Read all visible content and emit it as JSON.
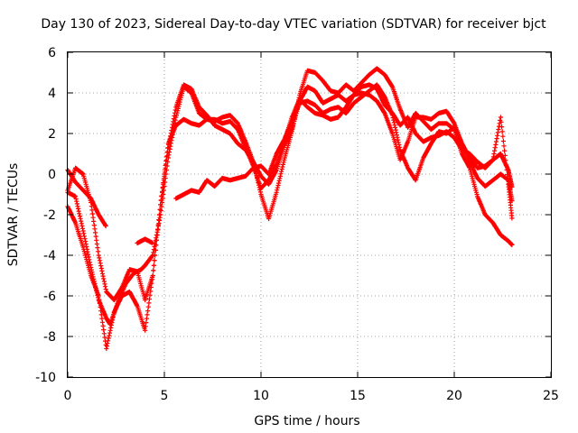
{
  "chart_data": {
    "type": "scatter",
    "title": "Day 130 of 2023, Sidereal Day-to-day VTEC variation (SDTVAR) for receiver bjct",
    "xlabel": "GPS time / hours",
    "ylabel": "SDTVAR / TECUs",
    "xlim": [
      0,
      25
    ],
    "ylim": [
      -10,
      6
    ],
    "xticks": [
      0,
      5,
      10,
      15,
      20,
      25
    ],
    "yticks": [
      -10,
      -8,
      -6,
      -4,
      -2,
      0,
      2,
      4,
      6
    ],
    "grid": true,
    "marker": "plus",
    "color": "#ff0000",
    "series": [
      {
        "x": [
          0,
          0.4,
          0.8,
          1.2,
          1.6,
          2.0,
          2.2,
          2.6,
          3.0,
          3.4,
          3.8,
          4.0,
          4.4,
          4.8,
          5.2,
          5.6,
          6.0,
          6.4,
          6.8,
          7.2,
          7.6,
          8.0,
          8.4,
          8.8,
          9.2,
          9.6,
          10.0,
          10.4,
          10.8,
          11.2,
          11.6,
          12.0,
          12.4,
          12.8,
          13.2,
          13.6,
          14.0,
          14.4,
          14.8,
          15.2,
          15.6,
          16.0,
          16.4,
          16.8,
          17.2,
          17.6,
          18.0,
          18.4,
          18.8,
          19.2,
          19.6,
          20.0,
          20.4,
          20.8,
          21.2,
          21.6,
          22.0,
          22.4,
          22.8,
          23.0
        ],
        "y": [
          -0.9,
          -1.1,
          -2.8,
          -4.6,
          -6.2,
          -7.1,
          -7.4,
          -6.3,
          -5.4,
          -4.9,
          -4.7,
          -4.5,
          -4.0,
          -2.0,
          0.8,
          2.8,
          4.3,
          4.0,
          3.0,
          2.7,
          2.6,
          2.8,
          2.9,
          2.5,
          1.6,
          0.6,
          -0.1,
          -0.5,
          0.2,
          1.4,
          2.2,
          3.6,
          4.3,
          4.1,
          3.5,
          3.7,
          3.9,
          3.6,
          3.9,
          4.3,
          4.4,
          4.2,
          3.4,
          3.0,
          2.4,
          2.8,
          2.0,
          1.6,
          1.8,
          1.9,
          2.1,
          1.8,
          1.2,
          1.0,
          0.6,
          0.3,
          0.7,
          1.0,
          0.2,
          -0.7
        ]
      },
      {
        "x": [
          0,
          0.4,
          0.8,
          1.2,
          1.6,
          2.0,
          2.4,
          2.8,
          3.2,
          3.6,
          4.0,
          4.4,
          4.8,
          5.2,
          5.6,
          6.0,
          6.4,
          6.8,
          7.2,
          7.6,
          8.0,
          8.4,
          8.8,
          9.2,
          9.6,
          10.0,
          10.4,
          10.8,
          11.2,
          11.6,
          12.0,
          12.4,
          12.8,
          13.2,
          13.6,
          14.0,
          14.4,
          14.8,
          15.2,
          15.6,
          16.0,
          16.4,
          16.8,
          17.2,
          17.6,
          18.0,
          18.4,
          18.8,
          19.2,
          19.6,
          20.0,
          20.4,
          20.8,
          21.2,
          21.6,
          22.0,
          22.4,
          22.8,
          23.0
        ],
        "y": [
          -0.8,
          0.3,
          0.0,
          -1.4,
          -4.0,
          -5.8,
          -6.2,
          -5.6,
          -4.7,
          -4.8,
          -6.2,
          -5.0,
          -1.5,
          1.3,
          3.3,
          4.4,
          4.2,
          3.3,
          2.9,
          2.4,
          2.2,
          2.0,
          1.5,
          1.2,
          0.6,
          -1.0,
          -2.2,
          -0.9,
          0.7,
          2.1,
          3.9,
          5.1,
          5.0,
          4.6,
          4.1,
          4.0,
          4.4,
          4.1,
          4.5,
          4.9,
          5.2,
          4.9,
          4.3,
          3.2,
          2.3,
          3.0,
          2.6,
          2.2,
          2.5,
          2.5,
          2.2,
          1.0,
          0.3,
          -1.1,
          -2.0,
          -2.4,
          -3.0,
          -3.3,
          -3.5
        ]
      },
      {
        "x": [
          0,
          0.4,
          0.8,
          1.2,
          1.6,
          2.0,
          2.4,
          2.8,
          3.2,
          3.6,
          4.0,
          4.4,
          4.8,
          5.2,
          5.6,
          6.0,
          6.4,
          6.8,
          7.2,
          7.6,
          8.0,
          8.4,
          8.8,
          9.2,
          9.6,
          10.0,
          10.4,
          10.8,
          11.2,
          11.6,
          12.0,
          12.4,
          12.8,
          13.2,
          13.6,
          14.0,
          14.4,
          14.8,
          15.2,
          15.6,
          16.0,
          16.4,
          16.8,
          17.2,
          17.6,
          18.0,
          18.4,
          18.8,
          19.2,
          19.6,
          20.0,
          20.4,
          20.8,
          21.2,
          21.6,
          22.0,
          22.4,
          22.8,
          23.0
        ],
        "y": [
          0.2,
          -0.4,
          -0.8,
          -1.2,
          -2.0,
          -2.6,
          null,
          null,
          null,
          -3.4,
          -3.2,
          -3.4,
          null,
          null,
          -1.2,
          -1.0,
          -0.8,
          -0.9,
          -0.3,
          -0.6,
          -0.2,
          -0.3,
          -0.2,
          -0.1,
          0.3,
          0.4,
          0.0,
          1.0,
          1.7,
          2.6,
          3.5,
          3.6,
          3.4,
          3.0,
          3.2,
          3.3,
          3.0,
          3.5,
          3.8,
          4.1,
          4.4,
          3.8,
          2.9,
          1.2,
          0.3,
          -0.3,
          0.8,
          1.5,
          2.1,
          2.0,
          2.3,
          1.5,
          0.6,
          -0.2,
          -0.6,
          -0.3,
          0.0,
          -0.3,
          -1.4
        ]
      },
      {
        "x": [
          0,
          0.4,
          0.8,
          1.2,
          1.6,
          2.0,
          2.4,
          2.8,
          3.2,
          3.6,
          4.0,
          4.4,
          4.8,
          5.2,
          5.6,
          6.0,
          6.4,
          6.8,
          7.2,
          7.6,
          8.0,
          8.4,
          8.8,
          9.2,
          9.6,
          10.0,
          10.4,
          10.8,
          11.2,
          11.6,
          12.0,
          12.4,
          12.8,
          13.2,
          13.6,
          14.0,
          14.4,
          14.8,
          15.2,
          15.6,
          16.0,
          16.4,
          16.8,
          17.2,
          17.6,
          18.0,
          18.4,
          18.8,
          19.2,
          19.6,
          20.0,
          20.4,
          20.8,
          21.2,
          21.6,
          22.0,
          22.4,
          22.8,
          23.0
        ],
        "y": [
          -1.6,
          -2.4,
          -3.6,
          -5.0,
          -6.0,
          -8.6,
          -6.8,
          -6.0,
          -5.8,
          -6.5,
          -7.7,
          -5.0,
          -1.5,
          1.5,
          2.4,
          2.7,
          2.5,
          2.4,
          2.7,
          2.7,
          2.5,
          2.6,
          2.2,
          1.3,
          0.4,
          -0.7,
          -0.3,
          0.5,
          1.6,
          2.8,
          3.7,
          3.3,
          3.0,
          2.9,
          2.7,
          2.8,
          3.3,
          3.9,
          4.0,
          3.9,
          3.6,
          3.0,
          2.0,
          0.7,
          1.6,
          2.8,
          2.8,
          2.7,
          3.0,
          3.1,
          2.5,
          1.5,
          0.8,
          0.3,
          0.4,
          0.7,
          2.8,
          -0.5,
          -2.3
        ]
      }
    ]
  }
}
